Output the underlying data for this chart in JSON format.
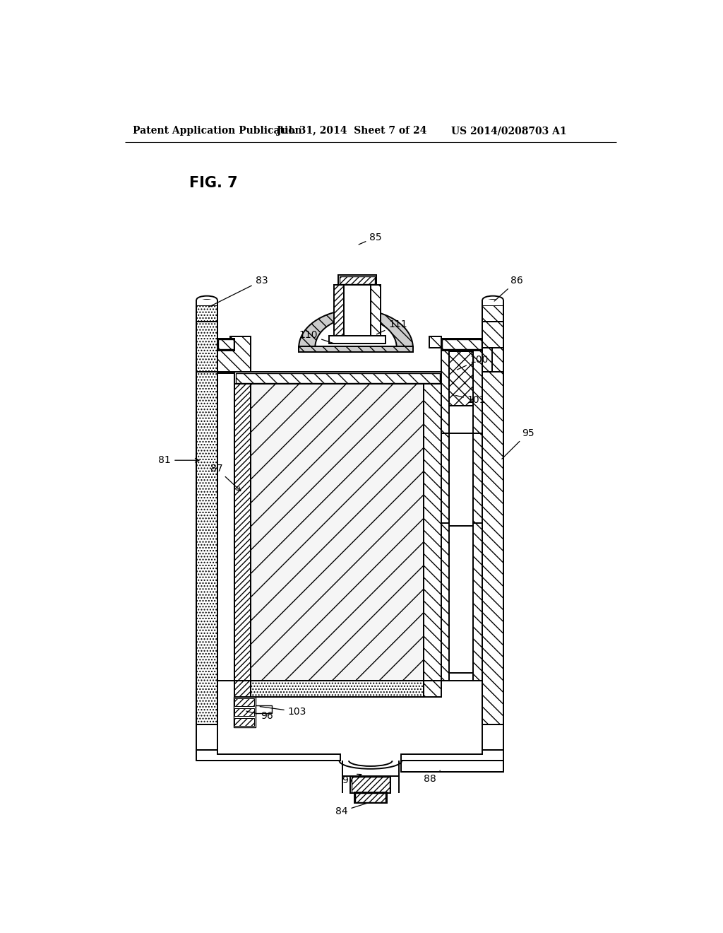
{
  "bg_color": "#ffffff",
  "lc": "#000000",
  "header_left": "Patent Application Publication",
  "header_mid": "Jul. 31, 2014  Sheet 7 of 24",
  "header_right": "US 2014/0208703 A1",
  "fig_label": "FIG. 7",
  "lw": 1.4,
  "lw2": 1.0
}
